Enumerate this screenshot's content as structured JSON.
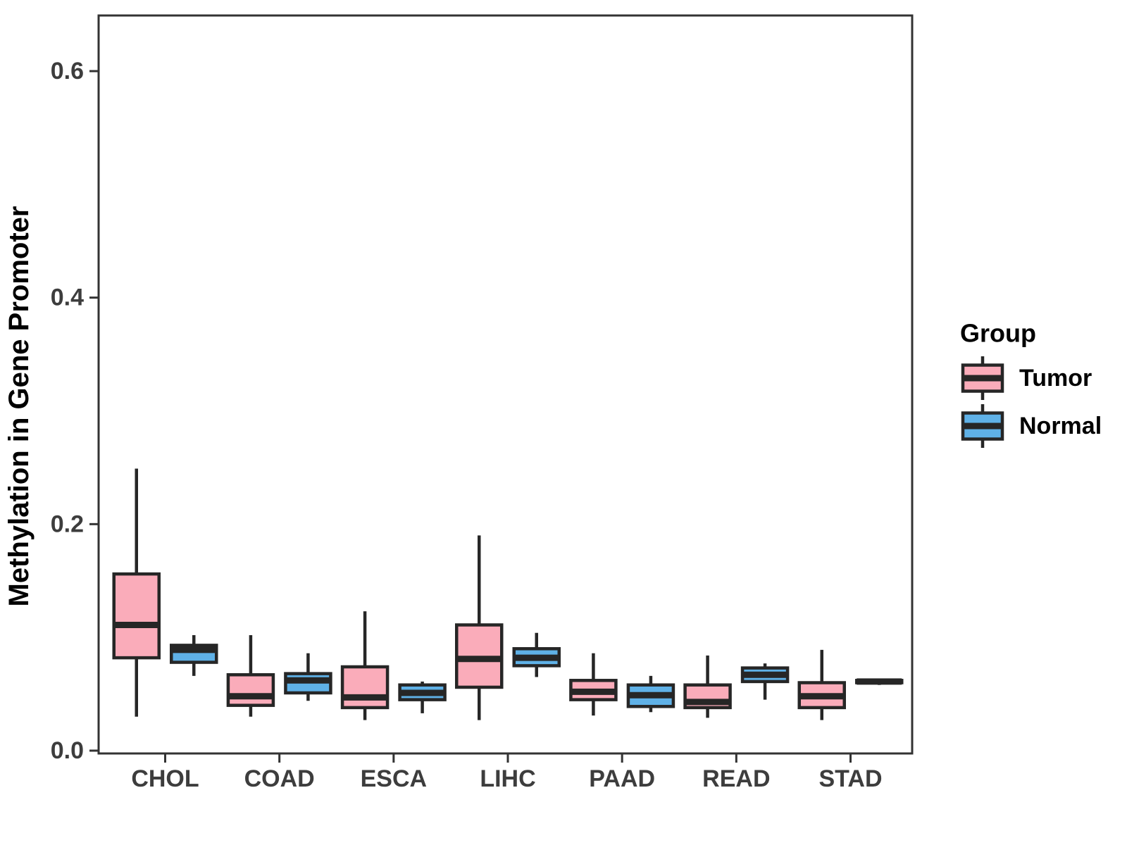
{
  "chart_data": {
    "type": "boxplot",
    "title": "",
    "xlabel": "",
    "ylabel": "Methylation in Gene Promoter",
    "categories": [
      "CHOL",
      "COAD",
      "ESCA",
      "LIHC",
      "PAAD",
      "READ",
      "STAD"
    ],
    "yticks": [
      0.0,
      0.2,
      0.4,
      0.6
    ],
    "ylim": [
      0,
      0.65
    ],
    "grid": false,
    "legend_title": "Group",
    "legend_position": "right",
    "colors": {
      "tumor_fill": "#FAACBA",
      "normal_fill": "#5FB1E7",
      "box_border": "#262626",
      "axis_line": "#333333",
      "tick_text": "#3d3d3d"
    },
    "series": [
      {
        "name": "Tumor",
        "color": "#FAACBA",
        "boxes": [
          {
            "category": "CHOL",
            "min": 0.03,
            "q1": 0.082,
            "median": 0.111,
            "q3": 0.156,
            "max": 0.249
          },
          {
            "category": "COAD",
            "min": 0.03,
            "q1": 0.04,
            "median": 0.048,
            "q3": 0.067,
            "max": 0.102
          },
          {
            "category": "ESCA",
            "min": 0.027,
            "q1": 0.038,
            "median": 0.047,
            "q3": 0.074,
            "max": 0.123
          },
          {
            "category": "LIHC",
            "min": 0.027,
            "q1": 0.056,
            "median": 0.081,
            "q3": 0.111,
            "max": 0.19
          },
          {
            "category": "PAAD",
            "min": 0.031,
            "q1": 0.045,
            "median": 0.052,
            "q3": 0.062,
            "max": 0.086
          },
          {
            "category": "READ",
            "min": 0.029,
            "q1": 0.038,
            "median": 0.043,
            "q3": 0.058,
            "max": 0.084
          },
          {
            "category": "STAD",
            "min": 0.027,
            "q1": 0.038,
            "median": 0.048,
            "q3": 0.06,
            "max": 0.089
          }
        ]
      },
      {
        "name": "Normal",
        "color": "#5FB1E7",
        "boxes": [
          {
            "category": "CHOL",
            "min": 0.066,
            "q1": 0.078,
            "median": 0.089,
            "q3": 0.093,
            "max": 0.102
          },
          {
            "category": "COAD",
            "min": 0.044,
            "q1": 0.051,
            "median": 0.062,
            "q3": 0.068,
            "max": 0.086
          },
          {
            "category": "ESCA",
            "min": 0.033,
            "q1": 0.045,
            "median": 0.051,
            "q3": 0.058,
            "max": 0.061
          },
          {
            "category": "LIHC",
            "min": 0.065,
            "q1": 0.075,
            "median": 0.082,
            "q3": 0.09,
            "max": 0.104
          },
          {
            "category": "PAAD",
            "min": 0.034,
            "q1": 0.039,
            "median": 0.049,
            "q3": 0.058,
            "max": 0.066
          },
          {
            "category": "READ",
            "min": 0.045,
            "q1": 0.061,
            "median": 0.067,
            "q3": 0.073,
            "max": 0.077
          },
          {
            "category": "STAD",
            "min": 0.058,
            "q1": 0.06,
            "median": 0.061,
            "q3": 0.062,
            "max": 0.063
          }
        ]
      }
    ]
  }
}
